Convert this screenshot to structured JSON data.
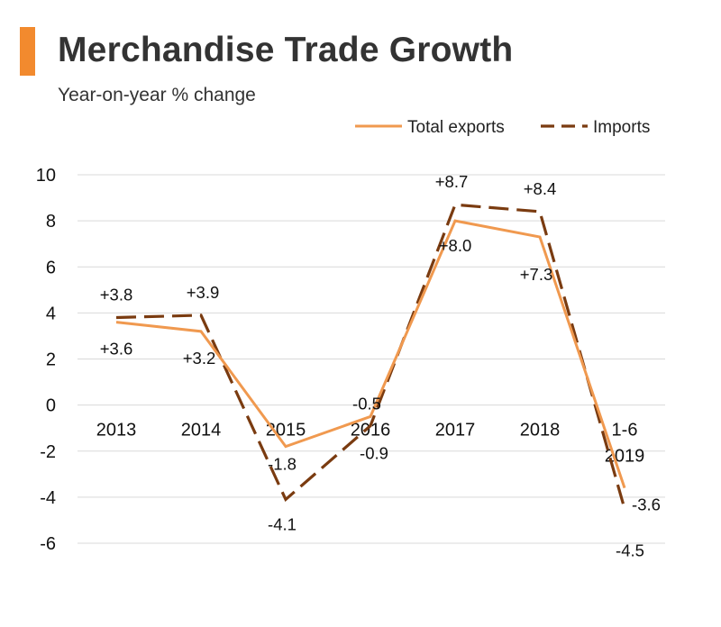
{
  "header": {
    "title": "Merchandise Trade Growth",
    "subtitle": "Year-on-year % change"
  },
  "colors": {
    "accent": "#f28a2e",
    "exports": "#f0994f",
    "imports": "#7a3b10",
    "grid": "#d9d9d9"
  },
  "chart_data": {
    "type": "line",
    "categories": [
      "2013",
      "2014",
      "2015",
      "2016",
      "2017",
      "2018",
      "1-6\n2019"
    ],
    "ylim": [
      -6,
      10
    ],
    "yticks": [
      10,
      8,
      6,
      4,
      2,
      0,
      -2,
      -4,
      -6
    ],
    "grid": true,
    "legend_position": "top-right",
    "series": [
      {
        "name": "Total exports",
        "style": "solid",
        "values": [
          3.6,
          3.2,
          -1.8,
          -0.5,
          8.0,
          7.3,
          -3.6
        ],
        "labels": [
          "+3.6",
          "+3.2",
          "-1.8",
          "-0.5",
          "+8.0",
          "+7.3",
          "-3.6"
        ]
      },
      {
        "name": "Imports",
        "style": "dashed",
        "values": [
          3.8,
          3.9,
          -4.1,
          -0.9,
          8.7,
          8.4,
          -4.5
        ],
        "labels": [
          "+3.8",
          "+3.9",
          "-4.1",
          "-0.9",
          "+8.7",
          "+8.4",
          "-4.5"
        ]
      }
    ]
  }
}
